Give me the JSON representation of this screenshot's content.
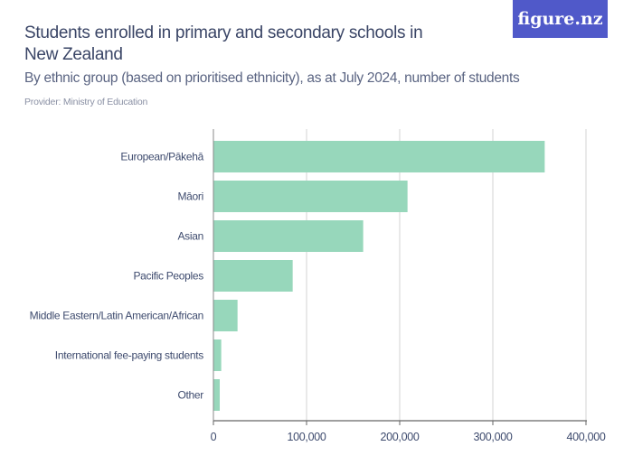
{
  "header": {
    "title": "Students enrolled in primary and secondary schools in New Zealand",
    "subtitle": "By ethnic group (based on prioritised ethnicity), as at July 2024, number of students",
    "provider": "Provider: Ministry of Education",
    "logo": "figure.nz"
  },
  "colors": {
    "bar": "#97d7bb",
    "logo_bg": "#5059c9",
    "grid": "#d3d3d3"
  },
  "chart_data": {
    "type": "bar",
    "orientation": "horizontal",
    "categories": [
      "European/Pākehā",
      "Māori",
      "Asian",
      "Pacific Peoples",
      "Middle Eastern/Latin American/African",
      "International fee-paying students",
      "Other"
    ],
    "values": [
      355700,
      208400,
      160800,
      85100,
      25900,
      8400,
      6800
    ],
    "xlim": [
      0,
      400000
    ],
    "xticks": [
      "0",
      "100,000",
      "200,000",
      "300,000",
      "400,000"
    ],
    "grid": true
  }
}
